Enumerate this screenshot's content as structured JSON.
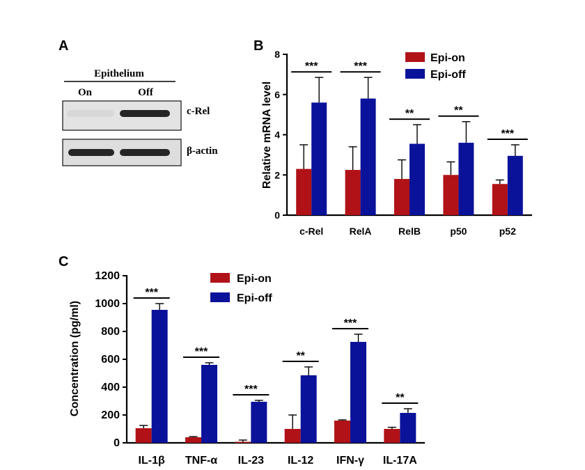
{
  "panels": {
    "a": {
      "letter": "A"
    },
    "b": {
      "letter": "B"
    },
    "c": {
      "letter": "C"
    }
  },
  "blot": {
    "header": "Epithelium",
    "lanes": [
      "On",
      "Off"
    ],
    "bands": [
      {
        "label": "c-Rel",
        "on_intensity": 0.05,
        "off_intensity": 0.95
      },
      {
        "label": "β-actin",
        "on_intensity": 0.95,
        "off_intensity": 0.95
      }
    ]
  },
  "colors": {
    "epi_on": "#b01217",
    "epi_off": "#0b129a",
    "axis": "#000000"
  },
  "chart_data": [
    {
      "id": "B",
      "type": "bar",
      "title": "",
      "xlabel": "",
      "ylabel": "Relative mRNA level",
      "ylim": [
        0,
        8
      ],
      "yticks": [
        0,
        2,
        4,
        6,
        8
      ],
      "categories": [
        "c-Rel",
        "RelA",
        "RelB",
        "p50",
        "p52"
      ],
      "series": [
        {
          "name": "Epi-on",
          "values": [
            2.3,
            2.25,
            1.8,
            2.0,
            1.55
          ],
          "errors": [
            1.2,
            1.15,
            0.95,
            0.65,
            0.2
          ]
        },
        {
          "name": "Epi-off",
          "values": [
            5.6,
            5.8,
            3.55,
            3.6,
            2.95
          ],
          "errors": [
            1.25,
            1.05,
            0.95,
            1.05,
            0.55
          ]
        }
      ],
      "significance": [
        "***",
        "***",
        "**",
        "**",
        "***"
      ],
      "legend_position": "top-right"
    },
    {
      "id": "C",
      "type": "bar",
      "title": "",
      "xlabel": "",
      "ylabel": "Concentration (pg/ml)",
      "ylim": [
        0,
        1200
      ],
      "yticks": [
        0,
        200,
        400,
        600,
        800,
        1000,
        1200
      ],
      "categories": [
        "IL-1β",
        "TNF-α",
        "IL-23",
        "IL-12",
        "IFN-γ",
        "IL-17A"
      ],
      "series": [
        {
          "name": "Epi-on",
          "values": [
            105,
            40,
            5,
            100,
            160,
            100
          ],
          "errors": [
            20,
            5,
            15,
            100,
            5,
            12
          ]
        },
        {
          "name": "Epi-off",
          "values": [
            955,
            560,
            295,
            485,
            725,
            215
          ],
          "errors": [
            45,
            15,
            10,
            60,
            55,
            30
          ]
        }
      ],
      "significance": [
        "***",
        "***",
        "***",
        "**",
        "***",
        "**"
      ],
      "legend_position": "top-right"
    }
  ]
}
